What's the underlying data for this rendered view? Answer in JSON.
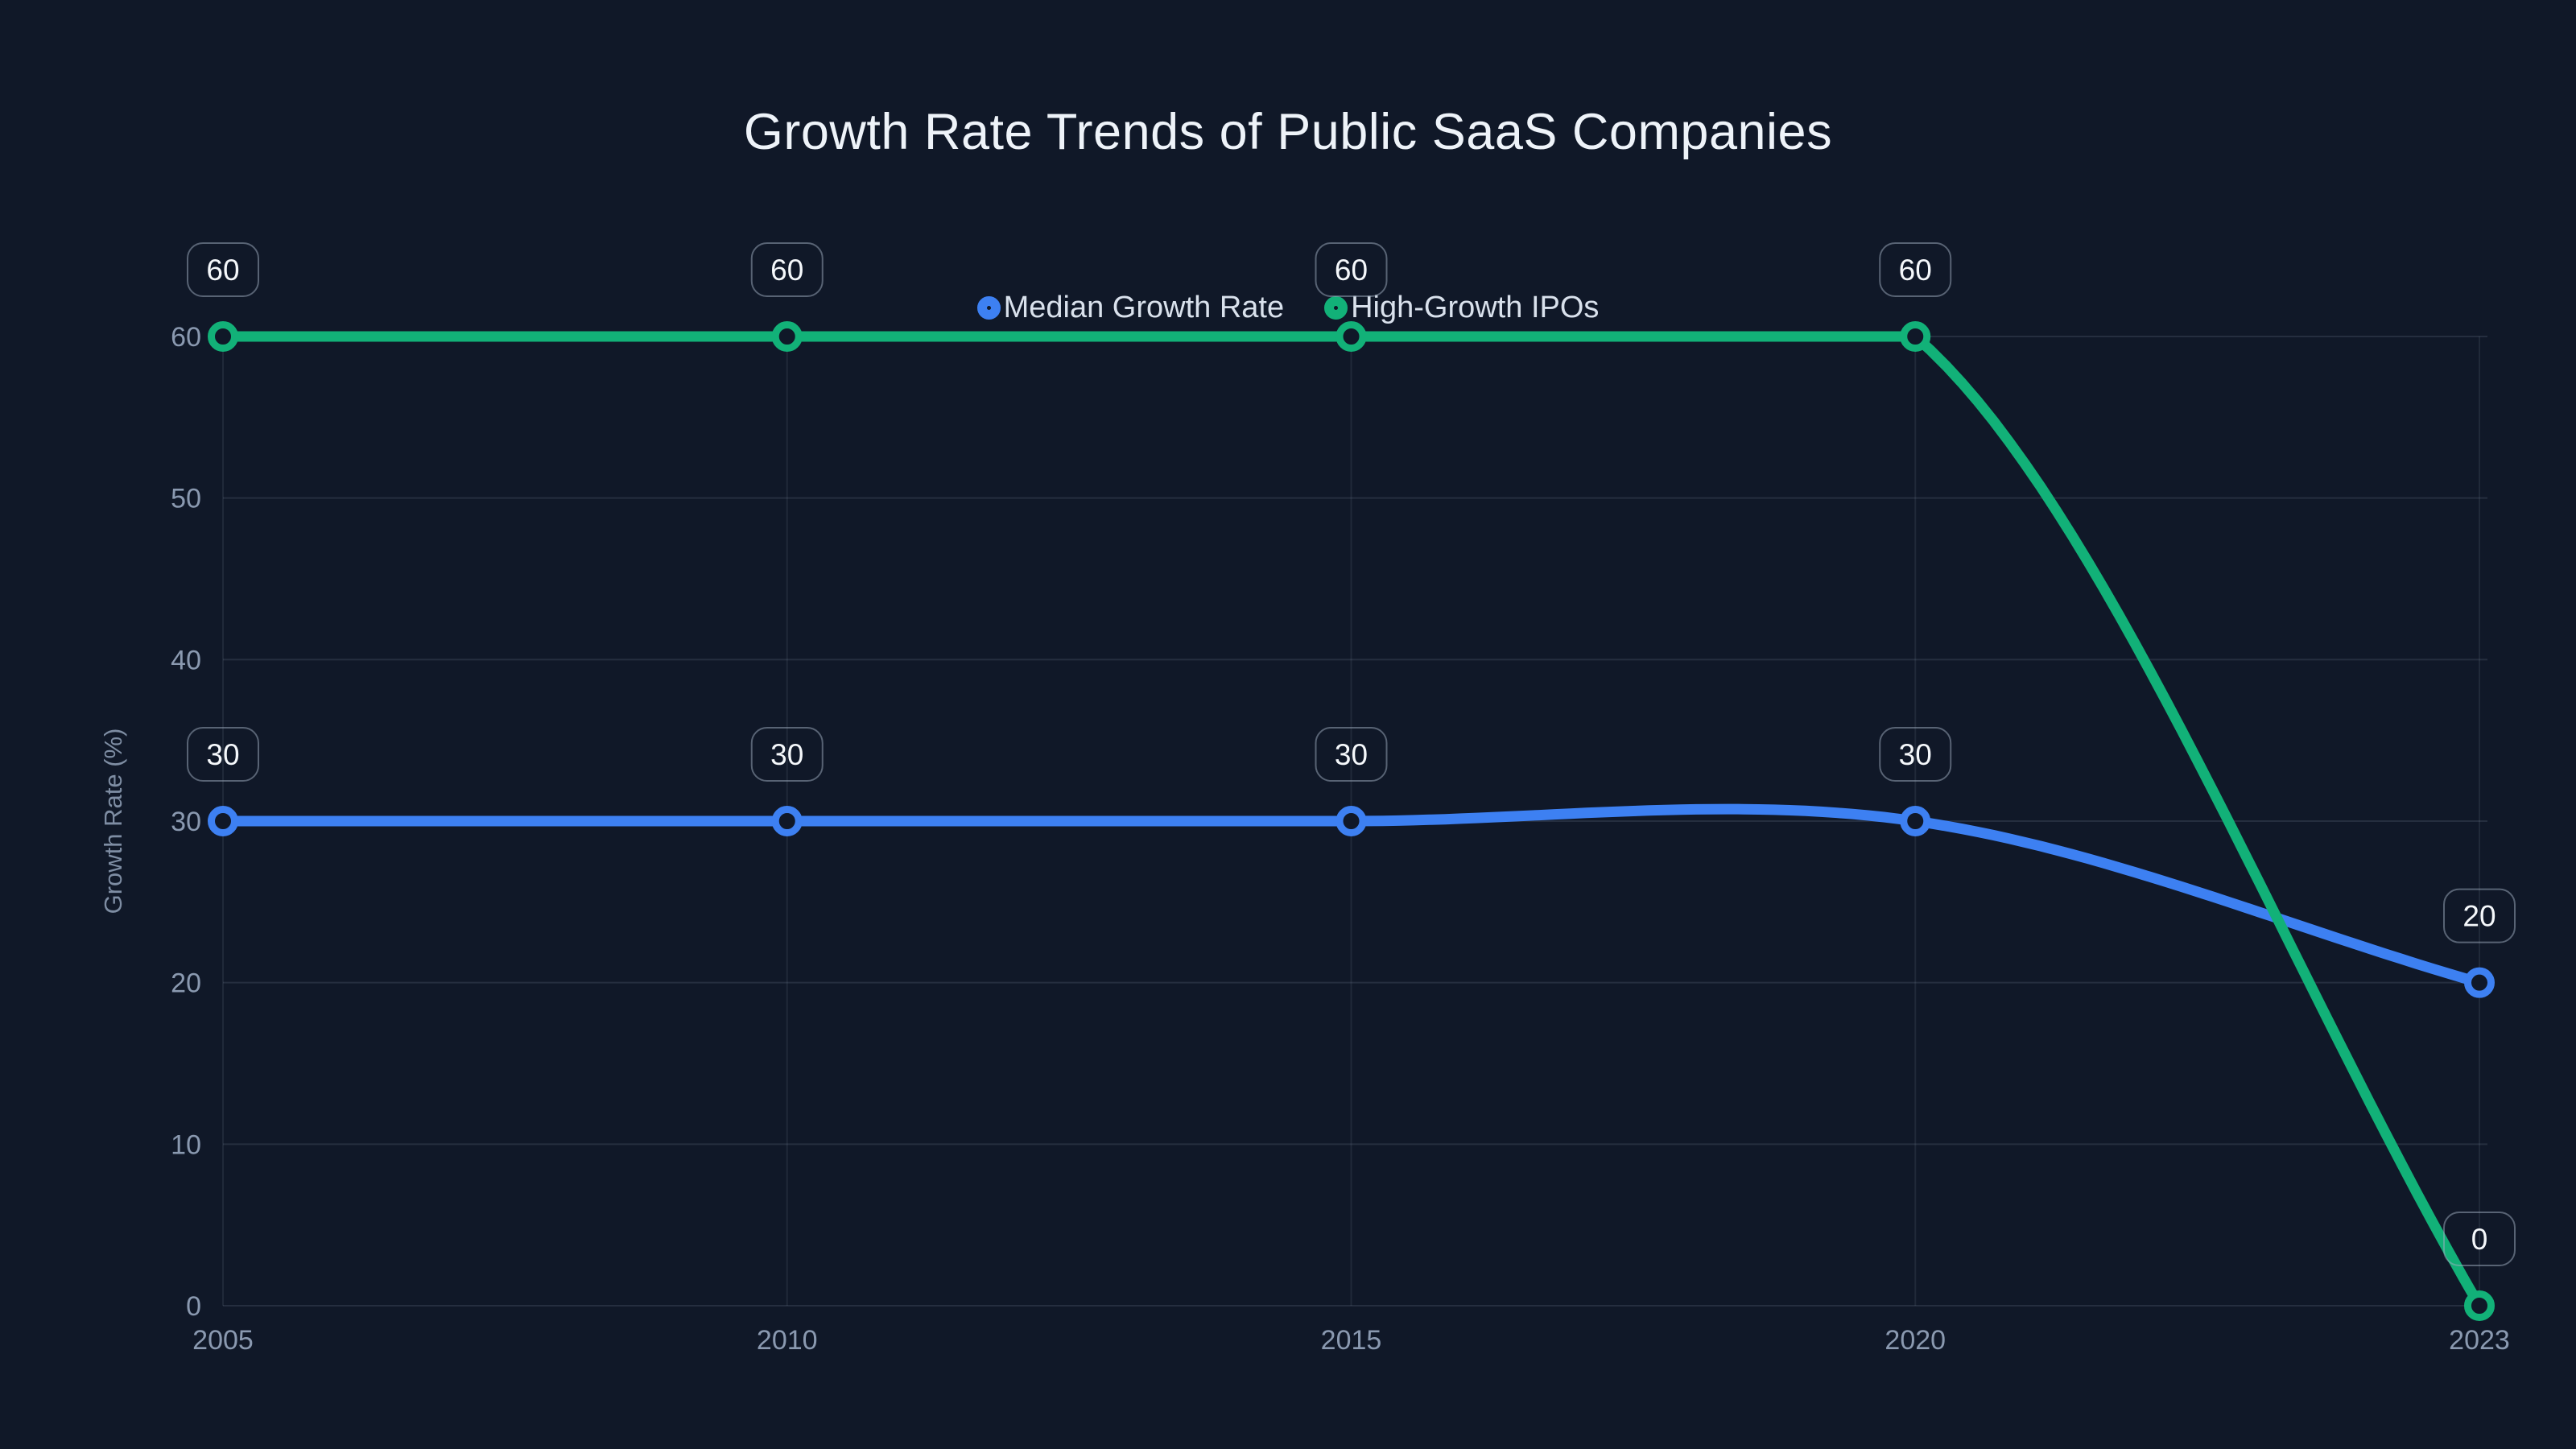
{
  "page": {
    "background": "#101828"
  },
  "chart_data": {
    "type": "line",
    "title": "Growth Rate Trends of Public SaaS Companies",
    "categories": [
      "2005",
      "2010",
      "2015",
      "2020",
      "2023"
    ],
    "series": [
      {
        "name": "Median Growth Rate",
        "color": "#3d80f2",
        "values": [
          30,
          30,
          30,
          30,
          20
        ]
      },
      {
        "name": "High-Growth IPOs",
        "color": "#12b178",
        "values": [
          60,
          60,
          60,
          60,
          0
        ]
      }
    ],
    "xlabel": "",
    "ylabel": "Growth Rate (%)",
    "yticks": [
      0,
      10,
      20,
      30,
      40,
      50,
      60
    ],
    "ylim": [
      0,
      60
    ],
    "grid": true,
    "legend_position": "top-center",
    "line_shape": "spline",
    "marker_style": "hollow-circle",
    "point_labels": [
      {
        "series": "Median Growth Rate",
        "labels": [
          "30",
          "30",
          "30",
          "30",
          "20"
        ]
      },
      {
        "series": "High-Growth IPOs",
        "labels": [
          "60",
          "60",
          "60",
          "60",
          "0"
        ]
      }
    ],
    "theme": {
      "background": "#101828",
      "title_color": "#eef3f9",
      "tick_label_color": "#8a99b0",
      "axis_title_color": "#7e8da3",
      "legend_text_color": "#d9e1ec",
      "gridline_color": "rgba(148,163,184,0.16)",
      "vertical_gridline_color": "rgba(148,163,184,0.12)",
      "point_label_text_color": "#f5f8fb",
      "point_label_border_color": "rgba(160,174,192,0.5)"
    }
  }
}
